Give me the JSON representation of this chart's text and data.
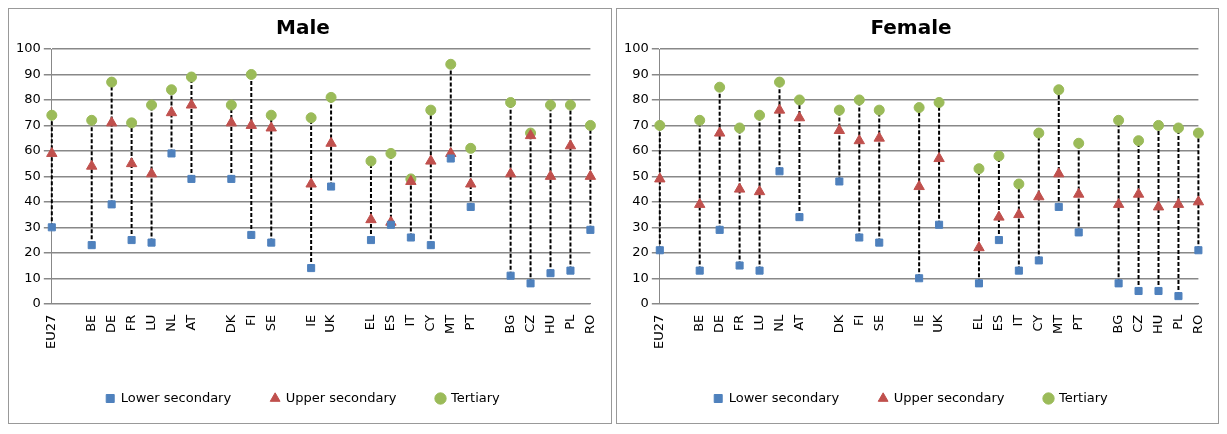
{
  "chart_data": [
    {
      "type": "scatter",
      "title": "Male",
      "categories": [
        "EU27",
        null,
        "BE",
        "DE",
        "FR",
        "LU",
        "NL",
        "AT",
        null,
        "DK",
        "FI",
        "SE",
        null,
        "IE",
        "UK",
        null,
        "EL",
        "ES",
        "IT",
        "CY",
        "MT",
        "PT",
        null,
        "BG",
        "CZ",
        "HU",
        "PL",
        "RO"
      ],
      "ylim": [
        0,
        100
      ],
      "yticks": [
        0,
        10,
        20,
        30,
        40,
        50,
        60,
        70,
        80,
        90,
        100
      ],
      "grid": "y",
      "legend": "bottom",
      "series": [
        {
          "name": "Lower secondary",
          "color": "#4f81bd",
          "marker": "square",
          "values": [
            30,
            null,
            23,
            39,
            25,
            24,
            59,
            49,
            null,
            49,
            27,
            24,
            null,
            14,
            46,
            null,
            25,
            31,
            26,
            23,
            57,
            38,
            null,
            11,
            8,
            12,
            13,
            29
          ]
        },
        {
          "name": "Upper secondary",
          "color": "#c0504d",
          "marker": "triangle",
          "values": [
            59,
            null,
            54,
            71,
            55,
            51,
            75,
            78,
            null,
            71,
            70,
            69,
            null,
            47,
            63,
            null,
            33,
            32,
            48,
            56,
            59,
            47,
            null,
            51,
            66,
            50,
            62,
            50
          ]
        },
        {
          "name": "Tertiary",
          "color": "#9bbb59",
          "marker": "circle",
          "values": [
            74,
            null,
            72,
            87,
            71,
            78,
            84,
            89,
            null,
            78,
            90,
            74,
            null,
            73,
            81,
            null,
            56,
            59,
            49,
            76,
            94,
            61,
            null,
            79,
            67,
            78,
            78,
            70
          ]
        }
      ]
    },
    {
      "type": "scatter",
      "title": "Female",
      "categories": [
        "EU27",
        null,
        "BE",
        "DE",
        "FR",
        "LU",
        "NL",
        "AT",
        null,
        "DK",
        "FI",
        "SE",
        null,
        "IE",
        "UK",
        null,
        "EL",
        "ES",
        "IT",
        "CY",
        "MT",
        "PT",
        null,
        "BG",
        "CZ",
        "HU",
        "PL",
        "RO"
      ],
      "ylim": [
        0,
        100
      ],
      "yticks": [
        0,
        10,
        20,
        30,
        40,
        50,
        60,
        70,
        80,
        90,
        100
      ],
      "grid": "y",
      "legend": "bottom",
      "series": [
        {
          "name": "Lower secondary",
          "color": "#4f81bd",
          "marker": "square",
          "values": [
            21,
            null,
            13,
            29,
            15,
            13,
            52,
            34,
            null,
            48,
            26,
            24,
            null,
            10,
            31,
            null,
            8,
            25,
            13,
            17,
            38,
            28,
            null,
            8,
            5,
            5,
            3,
            21
          ]
        },
        {
          "name": "Upper secondary",
          "color": "#c0504d",
          "marker": "triangle",
          "values": [
            49,
            null,
            39,
            67,
            45,
            44,
            76,
            73,
            null,
            68,
            64,
            65,
            null,
            46,
            57,
            null,
            22,
            34,
            35,
            42,
            51,
            43,
            null,
            39,
            43,
            38,
            39,
            40
          ]
        },
        {
          "name": "Tertiary",
          "color": "#9bbb59",
          "marker": "circle",
          "values": [
            70,
            null,
            72,
            85,
            69,
            74,
            87,
            80,
            null,
            76,
            80,
            76,
            null,
            77,
            79,
            null,
            53,
            58,
            47,
            67,
            84,
            63,
            null,
            72,
            64,
            70,
            69,
            67
          ]
        }
      ]
    }
  ]
}
